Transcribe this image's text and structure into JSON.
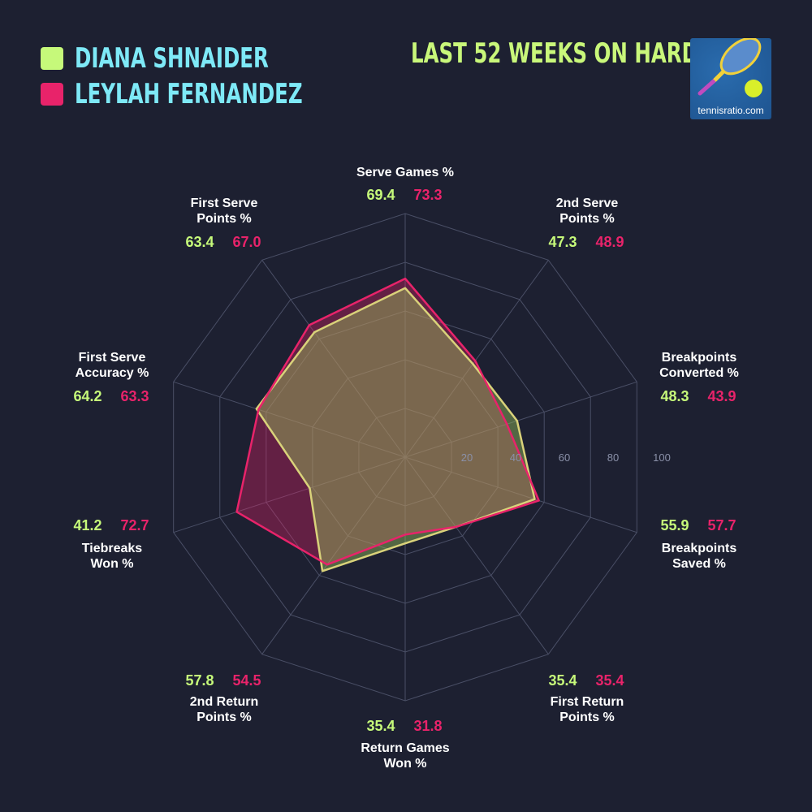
{
  "legend": [
    {
      "name": "DIANA SHNAIDER",
      "color": "#c6f97a"
    },
    {
      "name": "LEYLAH FERNANDEZ",
      "color": "#e8236a"
    }
  ],
  "title": "LAST 52 WEEKS ON HARD",
  "logo": {
    "text": "tennisratio.com"
  },
  "chart_data": {
    "type": "radar",
    "title": "LAST 52 WEEKS ON HARD",
    "range": [
      0,
      100
    ],
    "ticks": [
      "20",
      "40",
      "60",
      "80",
      "100"
    ],
    "grid": true,
    "axes": [
      [
        "Serve Games %"
      ],
      [
        "2nd Serve",
        "Points %"
      ],
      [
        "Breakpoints",
        "Converted %"
      ],
      [
        "Breakpoints",
        "Saved %"
      ],
      [
        "First Return",
        "Points %"
      ],
      [
        "Return Games",
        "Won %"
      ],
      [
        "2nd Return",
        "Points %"
      ],
      [
        "Tiebreaks",
        "Won %"
      ],
      [
        "First Serve",
        "Accuracy %"
      ],
      [
        "First Serve",
        "Points %"
      ]
    ],
    "series": [
      {
        "name": "DIANA SHNAIDER",
        "color": "#c6f97a",
        "values": [
          69.4,
          47.3,
          48.3,
          55.9,
          35.4,
          35.4,
          57.8,
          41.2,
          64.2,
          63.4
        ]
      },
      {
        "name": "LEYLAH FERNANDEZ",
        "color": "#e8236a",
        "values": [
          73.3,
          48.9,
          43.9,
          57.7,
          35.4,
          31.8,
          54.5,
          72.7,
          63.3,
          67.0
        ]
      }
    ]
  }
}
